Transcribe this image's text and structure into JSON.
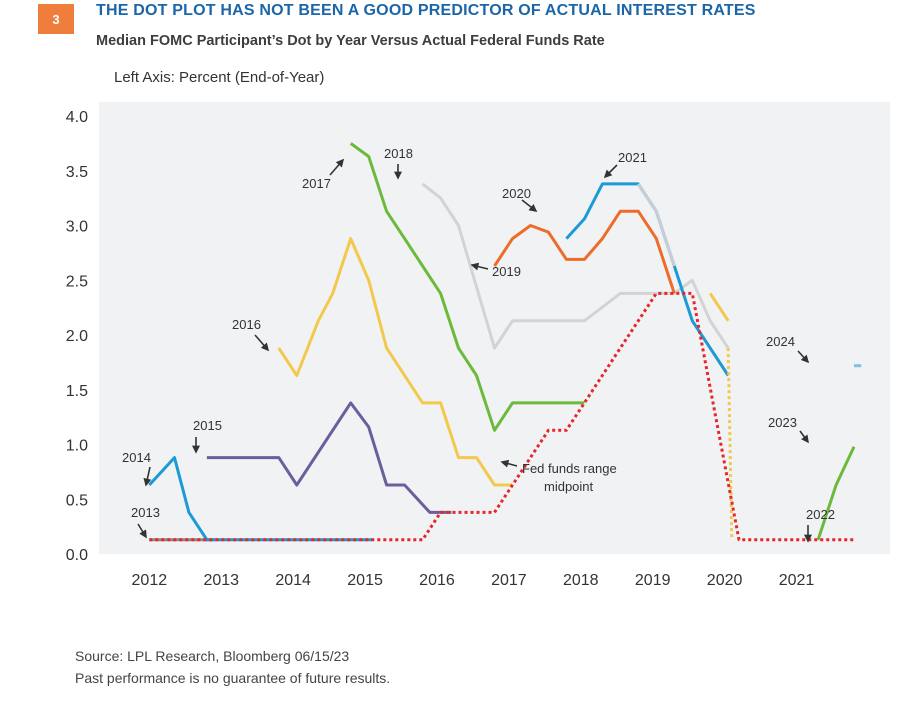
{
  "header": {
    "badge": "3",
    "title": "THE DOT PLOT HAS NOT BEEN A GOOD PREDICTOR OF ACTUAL INTEREST RATES",
    "subtitle": "Median FOMC Participant’s Dot by Year Versus Actual Federal Funds Rate",
    "axis_note": "Left Axis: Percent (End-of-Year)"
  },
  "footer": {
    "source": "Source: LPL Research, Bloomberg  06/15/23",
    "disclaimer": "Past performance is no guarantee of future results."
  },
  "colors": {
    "badge": "#ef7d3c",
    "title": "#1a66a8",
    "plot_bg": "#f1f2f4",
    "fed_funds": "#e5262b"
  },
  "chart_data": {
    "type": "line",
    "title": "Median FOMC Participant’s Dot by Year Versus Actual Federal Funds Rate",
    "ylabel": "Left Axis: Percent (End-of-Year)",
    "ylim": [
      0,
      4.0
    ],
    "xlim": [
      2011.3,
      2022.3
    ],
    "yticks": [
      "0.0",
      "0.5",
      "1.0",
      "1.5",
      "2.0",
      "2.5",
      "3.0",
      "3.5",
      "4.0"
    ],
    "xticks": [
      "2012",
      "2013",
      "2014",
      "2015",
      "2016",
      "2017",
      "2018",
      "2019",
      "2020",
      "2021"
    ],
    "grid": false,
    "series": [
      {
        "name": "2013",
        "color": "#8a8a8a",
        "style": "solid",
        "x": [
          2012.0,
          2012.9
        ],
        "y": [
          0.13,
          0.13
        ]
      },
      {
        "name": "2014",
        "color": "#1b9ad6",
        "style": "solid",
        "x": [
          2012.0,
          2012.35,
          2012.55,
          2012.8,
          2015.1
        ],
        "y": [
          0.63,
          0.88,
          0.38,
          0.13,
          0.13
        ]
      },
      {
        "name": "2015",
        "color": "#6a5f9c",
        "style": "solid",
        "x": [
          2012.8,
          2013.8,
          2014.05,
          2014.8,
          2015.05,
          2015.3,
          2015.55,
          2015.9,
          2016.2
        ],
        "y": [
          0.88,
          0.88,
          0.63,
          1.38,
          1.16,
          0.63,
          0.63,
          0.38,
          0.38
        ]
      },
      {
        "name": "2016",
        "color": "#f2c94c",
        "style": "solid",
        "x": [
          2013.8,
          2014.05,
          2014.35,
          2014.55,
          2014.8,
          2015.05,
          2015.3,
          2015.8,
          2016.05,
          2016.3,
          2016.55,
          2016.8,
          2017.05
        ],
        "y": [
          1.88,
          1.63,
          2.13,
          2.38,
          2.88,
          2.5,
          1.88,
          1.38,
          1.38,
          0.88,
          0.88,
          0.63,
          0.63
        ]
      },
      {
        "name": "2017",
        "color": "#6cba3c",
        "style": "solid",
        "x": [
          2014.8,
          2015.05,
          2015.3,
          2015.55,
          2015.8,
          2016.05,
          2016.3,
          2016.55,
          2016.8,
          2017.05,
          2017.3,
          2017.8,
          2018.05
        ],
        "y": [
          3.75,
          3.63,
          3.13,
          2.88,
          2.63,
          2.38,
          1.88,
          1.63,
          1.13,
          1.38,
          1.38,
          1.38,
          1.38
        ]
      },
      {
        "name": "2018",
        "color": "#d3d3d3",
        "style": "solid",
        "x": [
          2015.8,
          2016.05,
          2016.3,
          2016.8,
          2017.05,
          2017.8,
          2018.05,
          2018.55,
          2018.8,
          2019.3,
          2019.55,
          2019.8,
          2020.05
        ],
        "y": [
          3.38,
          3.25,
          3.0,
          1.88,
          2.13,
          2.13,
          2.13,
          2.38,
          2.38,
          2.38,
          2.5,
          2.13,
          1.88
        ]
      },
      {
        "name": "2019",
        "color": "#ee6c2a",
        "style": "solid",
        "x": [
          2016.8,
          2017.05,
          2017.3,
          2017.55,
          2017.8,
          2018.05,
          2018.3,
          2018.55,
          2018.8,
          2019.05,
          2019.3
        ],
        "y": [
          2.63,
          2.88,
          3.0,
          2.94,
          2.69,
          2.69,
          2.88,
          3.13,
          3.13,
          2.88,
          2.38
        ]
      },
      {
        "name": "2020",
        "color": "#1b9ad6",
        "style": "solid",
        "x": [
          2017.8,
          2018.05,
          2018.3,
          2018.8,
          2019.05,
          2019.3,
          2019.55,
          2020.05
        ],
        "y": [
          2.88,
          3.06,
          3.38,
          3.38,
          3.13,
          2.63,
          2.13,
          1.63
        ]
      },
      {
        "name": "2021",
        "color": "#c7ced6",
        "style": "solid",
        "x": [
          2018.8,
          2019.05,
          2019.3
        ],
        "y": [
          3.38,
          3.13,
          2.63
        ]
      },
      {
        "name": "2022",
        "color": "#f2c94c",
        "style": "solid",
        "x": [
          2019.8,
          2020.05
        ],
        "y": [
          2.38,
          2.13
        ]
      },
      {
        "name": "2022 (to 2022)",
        "color": "#f2c94c",
        "style": "dotted",
        "x": [
          2020.05,
          2020.1
        ],
        "y": [
          1.88,
          0.13
        ]
      },
      {
        "name": "2023",
        "color": "#6cba3c",
        "style": "solid",
        "x": [
          2021.3,
          2021.55,
          2021.8
        ],
        "y": [
          0.13,
          0.63,
          0.98
        ]
      },
      {
        "name": "2024",
        "color": "#7ec0e4",
        "style": "solid",
        "x": [
          2021.8,
          2021.9
        ],
        "y": [
          1.72,
          1.72
        ]
      },
      {
        "name": "Fed funds range midpoint",
        "color": "#e5262b",
        "style": "dotted",
        "x": [
          2012.0,
          2015.8,
          2016.05,
          2016.8,
          2017.55,
          2017.8,
          2018.55,
          2019.05,
          2019.55,
          2020.2,
          2021.8
        ],
        "y": [
          0.13,
          0.13,
          0.38,
          0.38,
          1.13,
          1.13,
          1.88,
          2.38,
          2.38,
          0.13,
          0.13
        ]
      }
    ],
    "annotations": [
      {
        "text": "2013",
        "pointer": "down"
      },
      {
        "text": "2014",
        "pointer": "down-right"
      },
      {
        "text": "2015",
        "pointer": "down"
      },
      {
        "text": "2016",
        "pointer": "down-right"
      },
      {
        "text": "2017",
        "pointer": "up-right"
      },
      {
        "text": "2018",
        "pointer": "down"
      },
      {
        "text": "2019",
        "pointer": "left"
      },
      {
        "text": "2020",
        "pointer": "down-right"
      },
      {
        "text": "2021",
        "pointer": "down-left"
      },
      {
        "text": "2022",
        "pointer": "down"
      },
      {
        "text": "2023",
        "pointer": "down-right"
      },
      {
        "text": "2024",
        "pointer": "down-right"
      },
      {
        "text": "Fed funds range",
        "pointer": "left"
      },
      {
        "text": "midpoint",
        "pointer": "none"
      }
    ]
  }
}
